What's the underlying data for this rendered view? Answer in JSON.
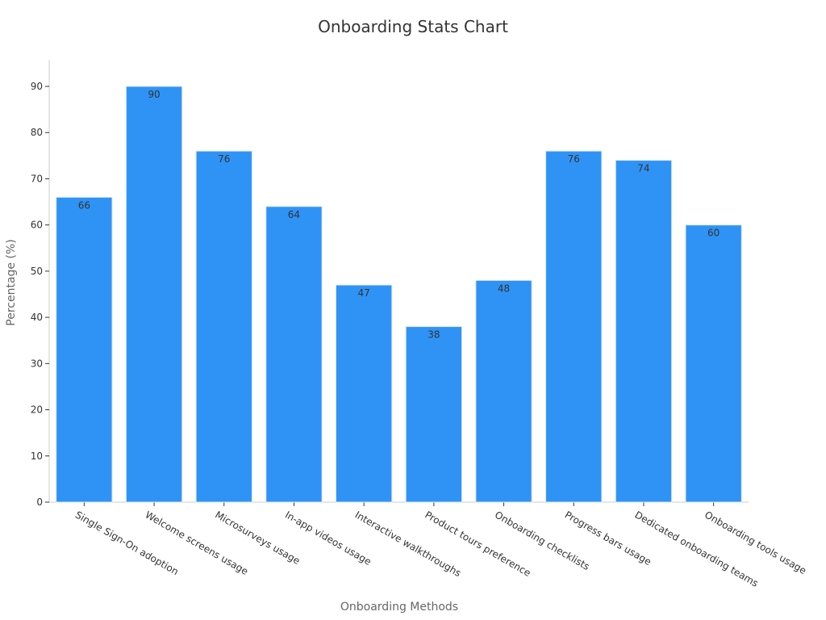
{
  "chart_data": {
    "type": "bar",
    "title": "Onboarding Stats Chart",
    "xlabel": "Onboarding Methods",
    "ylabel": "Percentage (%)",
    "ylim": [
      0,
      95
    ],
    "yticks": [
      0,
      10,
      20,
      30,
      40,
      50,
      60,
      70,
      80,
      90
    ],
    "grid": false,
    "bar_color": "#2f93f5",
    "bar_edge_color": "#dbe9f7",
    "axis_color": "#cccccc",
    "categories": [
      "Single Sign-On adoption",
      "Welcome screens usage",
      "Microsurveys usage",
      "In-app videos usage",
      "Interactive walkthroughs",
      "Product tours preference",
      "Onboarding checklists",
      "Progress bars usage",
      "Dedicated onboarding teams",
      "Onboarding tools usage"
    ],
    "values": [
      66,
      90,
      76,
      64,
      47,
      38,
      48,
      76,
      74,
      60
    ]
  }
}
